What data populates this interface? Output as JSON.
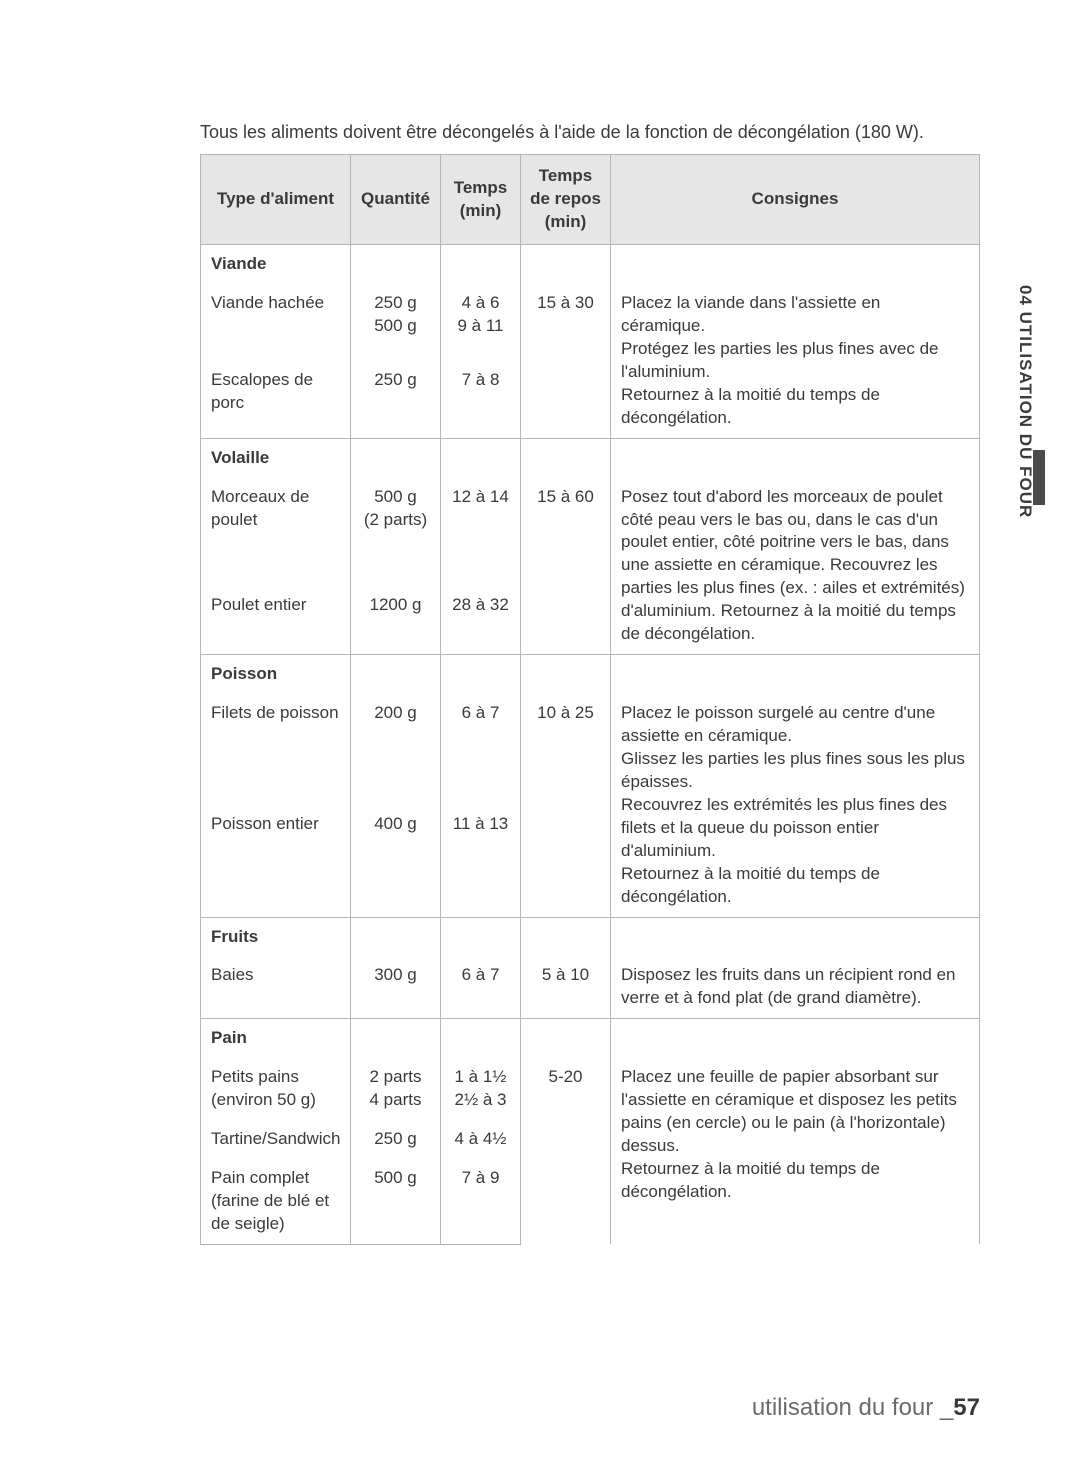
{
  "intro": "Tous les aliments doivent être décongelés à l'aide de la fonction de décongélation (180 W).",
  "headers": {
    "type": "Type d'aliment",
    "qty": "Quantité",
    "time": "Temps (min)",
    "rest": "Temps de repos (min)",
    "instr": "Consignes"
  },
  "sections": {
    "viande": {
      "title": "Viande",
      "r1_type": "Viande hachée",
      "r1_qty1": "250 g",
      "r1_qty2": "500 g",
      "r1_t1": "4 à 6",
      "r1_t2": "9 à 11",
      "rest": "15 à 30",
      "r2_type": "Escalopes de porc",
      "r2_qty": "250 g",
      "r2_t": "7 à 8",
      "instr": "Placez la viande dans l'assiette en céramique.\nProtégez les parties les plus fines avec de l'aluminium.\nRetournez à la moitié du temps de décongélation."
    },
    "volaille": {
      "title": "Volaille",
      "r1_type": "Morceaux de poulet",
      "r1_qty": "500 g\n(2 parts)",
      "r1_t": "12 à 14",
      "rest": "15 à 60",
      "r2_type": "Poulet entier",
      "r2_qty": "1200 g",
      "r2_t": "28 à 32",
      "instr": "Posez tout d'abord les morceaux de poulet côté peau vers le bas ou, dans le cas d'un poulet entier, côté poitrine vers le bas, dans une assiette en céramique. Recouvrez les parties les plus fines (ex. : ailes et extrémités) d'aluminium. Retournez à la moitié du temps de décongélation."
    },
    "poisson": {
      "title": "Poisson",
      "r1_type": "Filets de poisson",
      "r1_qty": "200 g",
      "r1_t": "6 à 7",
      "rest": "10 à 25",
      "r2_type": "Poisson entier",
      "r2_qty": "400 g",
      "r2_t": "11 à 13",
      "instr": "Placez le poisson surgelé au centre d'une assiette en céramique.\nGlissez les parties les plus fines sous les plus épaisses.\nRecouvrez les extrémités les plus fines des filets et la queue du poisson entier d'aluminium.\nRetournez à la moitié du temps de décongélation."
    },
    "fruits": {
      "title": "Fruits",
      "r1_type": "Baies",
      "r1_qty": "300 g",
      "r1_t": "6 à 7",
      "rest": "5 à 10",
      "instr": "Disposez les fruits dans un récipient rond en verre et à fond plat (de grand diamètre)."
    },
    "pain": {
      "title": "Pain",
      "r1_type": "Petits pains\n(environ 50 g)",
      "r1_qty": "2 parts\n4 parts",
      "r1_t": "1 à 1½\n2½ à 3",
      "rest": "5-20",
      "r2_type": "Tartine/Sandwich",
      "r2_qty": "250 g",
      "r2_t": "4 à 4½",
      "r3_type": "Pain complet (farine de blé et de seigle)",
      "r3_qty": "500 g",
      "r3_t": "7 à 9",
      "instr": "Placez une feuille de papier absorbant sur l'assiette en céramique et disposez les petits pains (en cercle) ou le pain (à l'horizontale) dessus.\nRetournez à la moitié du temps de décongélation."
    }
  },
  "sideTab": "04 UTILISATION DU FOUR",
  "footer": {
    "text": "utilisation du four _",
    "page": "57"
  },
  "style": {
    "page_bg": "#ffffff",
    "text_color": "#3a3a3a",
    "header_bg": "#e6e6e6",
    "border_color": "#b5b5b5",
    "footer_color": "#6b6b6b",
    "marker_color": "#4a4a4a",
    "body_fontsize": 17,
    "intro_fontsize": 18,
    "footer_fontsize": 24
  }
}
